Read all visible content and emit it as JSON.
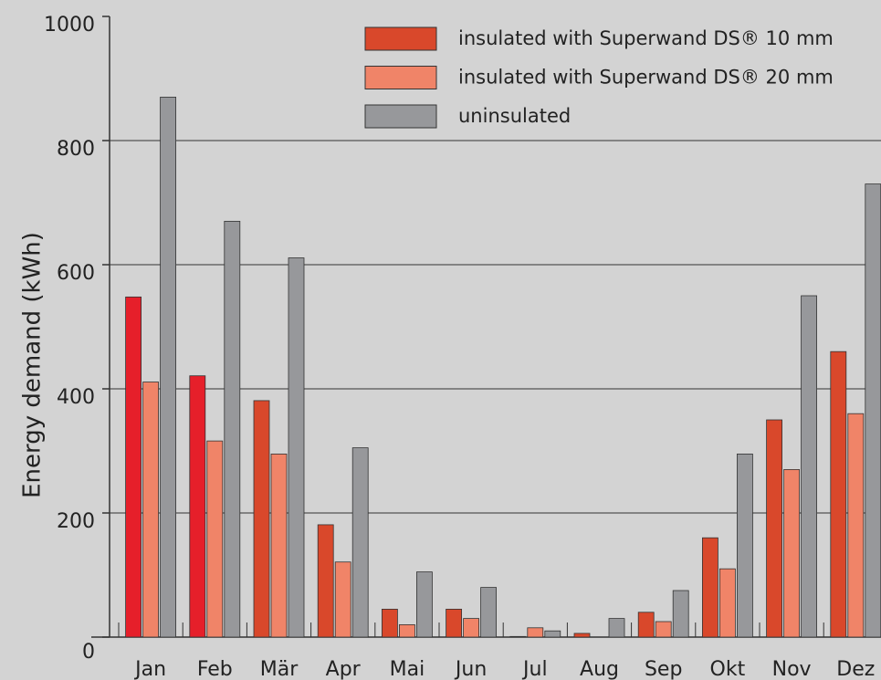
{
  "chart_data": {
    "type": "bar",
    "y_label": "Energy demand (kWh)",
    "categories": [
      "Jan",
      "Feb",
      "Mär",
      "Apr",
      "Mai",
      "Jun",
      "Jul",
      "Aug",
      "Sep",
      "Okt",
      "Nov",
      "Dez"
    ],
    "series": [
      {
        "name": "insulated with Superwand DS® 10 mm",
        "color": "#d9482b",
        "colors": [
          "#e61f2a",
          "#e61f2a",
          "#d9482b",
          "#d9482b",
          "#d9482b",
          "#d9482b",
          "#d9482b",
          "#d9482b",
          "#d9482b",
          "#d9482b",
          "#d9482b",
          "#d9482b"
        ],
        "values": [
          548,
          421,
          381,
          181,
          45,
          45,
          1,
          6,
          40,
          160,
          350,
          460
        ]
      },
      {
        "name": "insulated with Superwand DS® 20 mm",
        "color": "#f08468",
        "values": [
          411,
          316,
          295,
          121,
          20,
          30,
          15,
          0,
          25,
          110,
          270,
          360
        ]
      },
      {
        "name": "uninsulated",
        "color": "#97989b",
        "values": [
          870,
          670,
          611,
          305,
          105,
          80,
          10,
          30,
          75,
          295,
          550,
          730
        ]
      }
    ],
    "ylim": [
      0,
      1000
    ],
    "yticks": [
      0,
      200,
      400,
      600,
      800,
      1000
    ],
    "grid": true
  }
}
